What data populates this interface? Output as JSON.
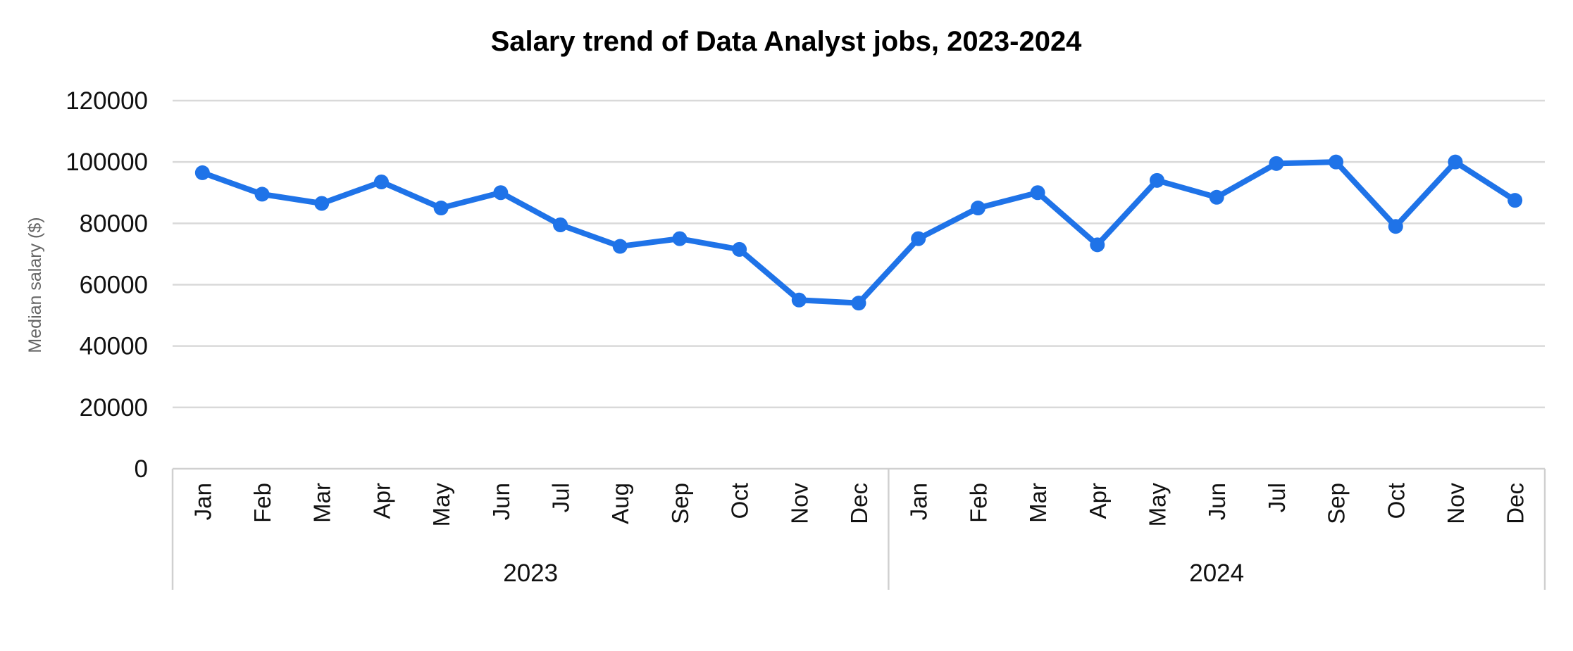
{
  "chart_data": {
    "type": "line",
    "title": "Salary trend of Data Analyst jobs, 2023-2024",
    "xlabel": "",
    "ylabel": "Median salary ($)",
    "ylim": [
      0,
      120000
    ],
    "yticks": [
      "0",
      "20000",
      "40000",
      "60000",
      "80000",
      "100000",
      "120000"
    ],
    "grid": true,
    "line_color": "#1f73e8",
    "groups": [
      {
        "label": "2023",
        "categories": [
          "Jan",
          "Feb",
          "Mar",
          "Apr",
          "May",
          "Jun",
          "Jul",
          "Aug",
          "Sep",
          "Oct",
          "Nov",
          "Dec"
        ]
      },
      {
        "label": "2024",
        "categories": [
          "Jan",
          "Feb",
          "Mar",
          "Apr",
          "May",
          "Jun",
          "Jul",
          "Sep",
          "Oct",
          "Nov",
          "Dec"
        ]
      }
    ],
    "series": [
      {
        "values": [
          96500,
          89500,
          86500,
          93500,
          85000,
          90000,
          79500,
          72500,
          75000,
          71500,
          55000,
          54000,
          75000,
          85000,
          90000,
          73000,
          94000,
          88500,
          99500,
          100000,
          79000,
          100000,
          87500
        ]
      }
    ]
  }
}
